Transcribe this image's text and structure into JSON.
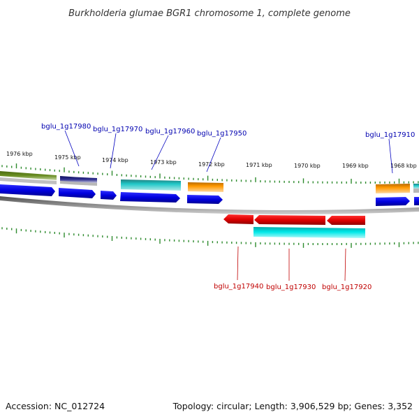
{
  "title": "Burkholderia glumae BGR1 chromosome 1, complete genome",
  "footer": {
    "accession": "Accession: NC_012724",
    "summary": "Topology: circular; Length: 3,906,529 bp; Genes: 3,352"
  },
  "ruler": {
    "labels": [
      "1976 kbp",
      "1975 kbp",
      "1974 kbp",
      "1973 kbp",
      "1972 kbp",
      "1971 kbp",
      "1970 kbp",
      "1969 kbp",
      "1968 kbp"
    ],
    "tick_color": "#2e8b2e"
  },
  "backbone_color": "#808080",
  "colors": {
    "forward_gene": "#0000e0",
    "reverse_gene": "#e00000",
    "cyan_feature": "#00d8d8",
    "teal_feature": "#20b0b0",
    "orange_feature": "#ff9900",
    "olive_feature": "#6a8e23",
    "navy_feature": "#222288",
    "forward_label": "#0000b0",
    "reverse_label": "#c00000"
  },
  "gene_labels": {
    "forward": [
      "bglu_1g17980",
      "bglu_1g17970",
      "bglu_1g17960",
      "bglu_1g17950",
      "bglu_1g17910"
    ],
    "reverse": [
      "bglu_1g17940",
      "bglu_1g17930",
      "bglu_1g17920"
    ]
  }
}
